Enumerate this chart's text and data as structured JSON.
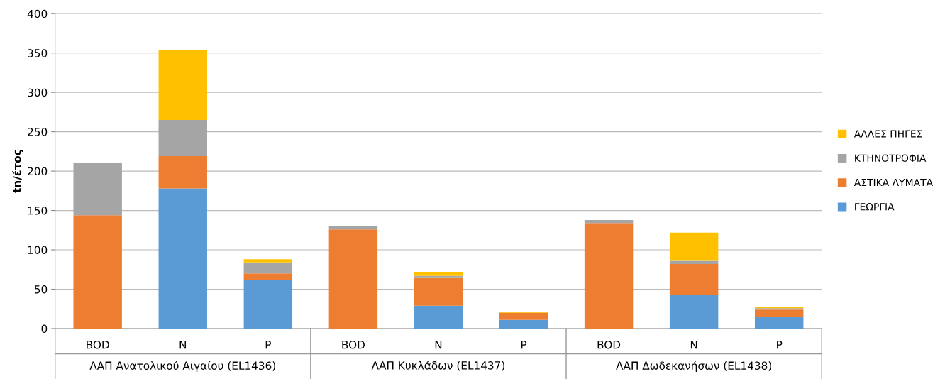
{
  "chart_data": {
    "type": "bar",
    "stacked": true,
    "ylabel": "tn/έτος",
    "categories": [
      "BOD",
      "N",
      "P",
      "BOD",
      "N",
      "P",
      "BOD",
      "N",
      "P"
    ],
    "annotations": [
      "ΛΑΠ Ανατολικού Αιγαίου (EL1436)",
      "ΛΑΠ Κυκλάδων (EL1437)",
      "ΛΑΠ Δωδεκανήσων (EL1438)"
    ],
    "series": [
      {
        "name": "ΓΕΩΡΓΙΑ",
        "color": "#5b9bd5",
        "values": [
          0,
          178,
          62,
          0,
          29,
          11,
          0,
          43,
          15
        ]
      },
      {
        "name": "ΑΣΤΙΚΑ ΛΥΜΑΤΑ",
        "color": "#ed7d31",
        "values": [
          144,
          41,
          8,
          126,
          36,
          9,
          134,
          39,
          9
        ]
      },
      {
        "name": "ΚΤΗΝΟΤΡΟΦΙΑ",
        "color": "#a5a5a5",
        "values": [
          66,
          46,
          14,
          4,
          2,
          null,
          4,
          4,
          2
        ]
      },
      {
        "name": "ΑΛΛΕΣ ΠΗΓΕΣ",
        "color": "#ffc000",
        "values": [
          0,
          89,
          4,
          0,
          5,
          1,
          0,
          36,
          1
        ]
      }
    ],
    "ylim": [
      0,
      400
    ],
    "yticks": [
      0,
      50,
      100,
      150,
      200,
      250,
      300,
      350,
      400
    ],
    "grid": "y",
    "legend": "right"
  }
}
